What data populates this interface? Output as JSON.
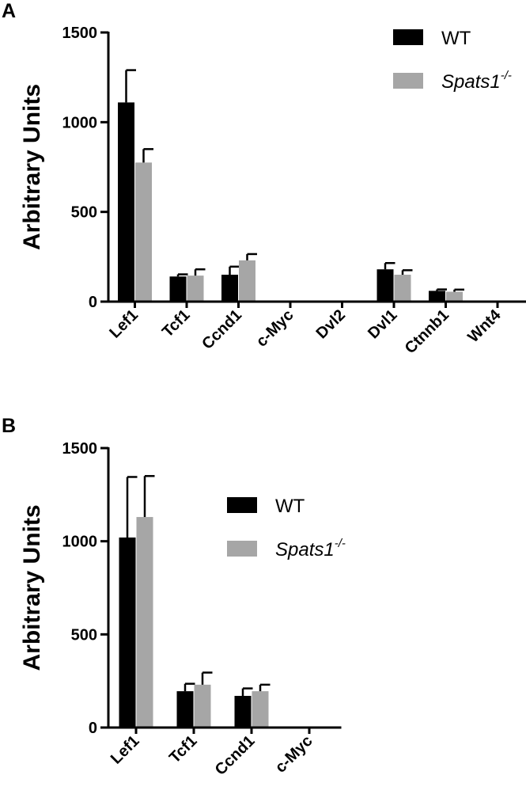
{
  "panels": [
    {
      "letter": "A"
    },
    {
      "letter": "B"
    }
  ],
  "colors": {
    "WT": "#000000",
    "Spats1-/-": "#a6a6a6",
    "error_bar": "#000000"
  },
  "chart_data": [
    {
      "type": "bar",
      "panel": "A",
      "title": "",
      "xlabel": "",
      "ylabel": "Arbitrary Units",
      "ylim": [
        0,
        1500
      ],
      "yticks": [
        0,
        500,
        1000,
        1500
      ],
      "categories": [
        "Lef1",
        "Tcf1",
        "Ccnd1",
        "c-Myc",
        "Dvl2",
        "Dvl1",
        "Ctnnb1",
        "Wnt4"
      ],
      "legend_position": "top-right",
      "series": [
        {
          "name": "WT",
          "name_base": "Spats1",
          "values": [
            1110,
            140,
            150,
            0,
            0,
            180,
            60,
            0
          ],
          "errors": [
            180,
            12,
            45,
            0,
            0,
            35,
            8,
            0
          ]
        },
        {
          "name": "Spats1-/-",
          "name_base": "Spats1",
          "name_sup": "-/-",
          "italic": true,
          "values": [
            775,
            145,
            230,
            0,
            0,
            150,
            55,
            0
          ],
          "errors": [
            75,
            35,
            35,
            0,
            0,
            25,
            12,
            0
          ]
        }
      ]
    },
    {
      "type": "bar",
      "panel": "B",
      "title": "",
      "xlabel": "",
      "ylabel": "Arbitrary Units",
      "ylim": [
        0,
        1500
      ],
      "yticks": [
        0,
        500,
        1000,
        1500
      ],
      "categories": [
        "Lef1",
        "Tcf1",
        "Ccnd1",
        "c-Myc"
      ],
      "legend_position": "top-right",
      "series": [
        {
          "name": "WT",
          "values": [
            1020,
            195,
            170,
            0
          ],
          "errors": [
            325,
            40,
            40,
            0
          ]
        },
        {
          "name": "Spats1-/-",
          "name_base": "Spats1",
          "name_sup": "-/-",
          "italic": true,
          "values": [
            1130,
            230,
            195,
            0
          ],
          "errors": [
            220,
            65,
            35,
            0
          ]
        }
      ]
    }
  ]
}
